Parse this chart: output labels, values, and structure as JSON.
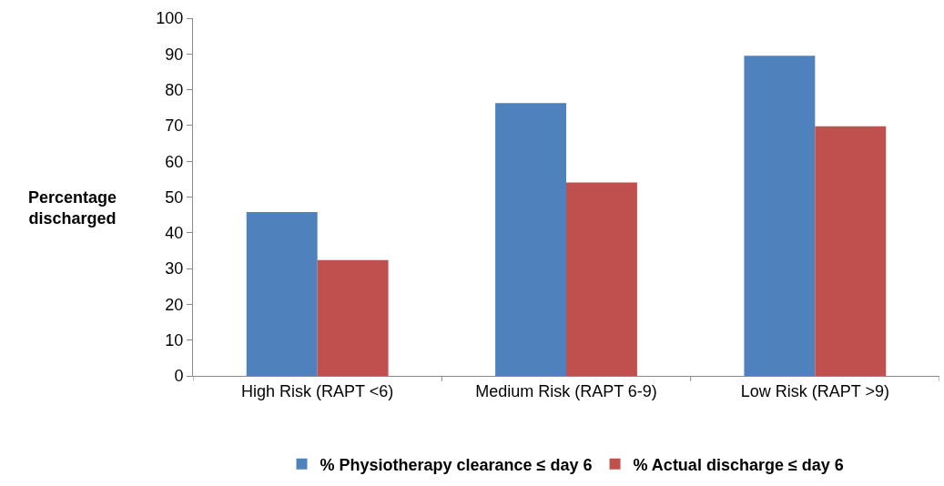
{
  "chart_data": {
    "type": "bar",
    "ylabel": "Percentage\ndischarged",
    "categories": [
      "High Risk (RAPT <6)",
      "Medium Risk (RAPT 6-9)",
      "Low Risk (RAPT >9)"
    ],
    "series": [
      {
        "name": "% Physiotherapy clearance ≤ day 6",
        "color": "#4f81bd",
        "values": [
          45.8,
          76.3,
          89.5
        ]
      },
      {
        "name": "% Actual discharge ≤ day 6",
        "color": "#c0504d",
        "values": [
          32.4,
          54.1,
          69.8
        ]
      }
    ],
    "ylim": [
      0,
      100
    ],
    "yticks": [
      0,
      10,
      20,
      30,
      40,
      50,
      60,
      70,
      80,
      90,
      100
    ],
    "legend": "bottom"
  }
}
